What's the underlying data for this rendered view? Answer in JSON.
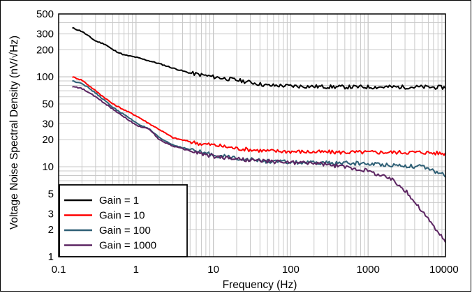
{
  "chart_data": {
    "type": "line",
    "title": "",
    "xlabel": "Frequency (Hz)",
    "ylabel": "Voltage Noise Spectral Density (nV/√Hz)",
    "x_scale": "log",
    "y_scale": "log",
    "xlim": [
      0.1,
      10000
    ],
    "ylim": [
      1,
      500
    ],
    "grid": true,
    "legend_position": "bottom-left",
    "x_ticks": [
      {
        "value": 0.1,
        "label": "0.1"
      },
      {
        "value": 1,
        "label": "1"
      },
      {
        "value": 10,
        "label": "10"
      },
      {
        "value": 100,
        "label": "100"
      },
      {
        "value": 1000,
        "label": "1000"
      },
      {
        "value": 10000,
        "label": "10000"
      }
    ],
    "y_ticks": [
      {
        "value": 1,
        "label": "1"
      },
      {
        "value": 2,
        "label": "2"
      },
      {
        "value": 3,
        "label": "3"
      },
      {
        "value": 5,
        "label": "5"
      },
      {
        "value": 10,
        "label": "10"
      },
      {
        "value": 20,
        "label": "20"
      },
      {
        "value": 30,
        "label": "30"
      },
      {
        "value": 50,
        "label": "50"
      },
      {
        "value": 100,
        "label": "100"
      },
      {
        "value": 200,
        "label": "200"
      },
      {
        "value": 300,
        "label": "300"
      },
      {
        "value": 500,
        "label": "500"
      }
    ],
    "series": [
      {
        "name": "Gain = 1",
        "color": "#000000",
        "points": [
          [
            0.15,
            350
          ],
          [
            0.2,
            320
          ],
          [
            0.3,
            250
          ],
          [
            0.4,
            230
          ],
          [
            0.5,
            200
          ],
          [
            0.7,
            175
          ],
          [
            1,
            165
          ],
          [
            1.5,
            150
          ],
          [
            2,
            140
          ],
          [
            3,
            125
          ],
          [
            5,
            110
          ],
          [
            7,
            105
          ],
          [
            10,
            100
          ],
          [
            20,
            92
          ],
          [
            30,
            87
          ],
          [
            50,
            80
          ],
          [
            70,
            80
          ],
          [
            100,
            79
          ],
          [
            200,
            78
          ],
          [
            500,
            77
          ],
          [
            1000,
            77
          ],
          [
            2000,
            77
          ],
          [
            5000,
            77
          ],
          [
            10000,
            76
          ]
        ]
      },
      {
        "name": "Gain = 10",
        "color": "#ff0000",
        "points": [
          [
            0.15,
            100
          ],
          [
            0.2,
            92
          ],
          [
            0.3,
            70
          ],
          [
            0.5,
            50
          ],
          [
            0.7,
            43
          ],
          [
            1,
            37
          ],
          [
            1.5,
            30
          ],
          [
            2,
            26
          ],
          [
            3,
            21
          ],
          [
            5,
            19
          ],
          [
            7,
            18
          ],
          [
            10,
            17.5
          ],
          [
            20,
            16
          ],
          [
            30,
            15.5
          ],
          [
            50,
            15
          ],
          [
            100,
            14.8
          ],
          [
            200,
            14.6
          ],
          [
            500,
            14.5
          ],
          [
            1000,
            14.5
          ],
          [
            2000,
            14.5
          ],
          [
            5000,
            14.5
          ],
          [
            10000,
            14
          ]
        ]
      },
      {
        "name": "Gain = 100",
        "color": "#2e5f75",
        "points": [
          [
            0.15,
            90
          ],
          [
            0.2,
            85
          ],
          [
            0.3,
            66
          ],
          [
            0.5,
            46
          ],
          [
            0.7,
            38
          ],
          [
            1,
            31
          ],
          [
            1.2,
            28.5
          ],
          [
            1.5,
            26
          ],
          [
            2,
            21
          ],
          [
            3,
            17.5
          ],
          [
            5,
            15.5
          ],
          [
            7,
            14.5
          ],
          [
            10,
            13.5
          ],
          [
            20,
            12.5
          ],
          [
            30,
            12
          ],
          [
            50,
            11.5
          ],
          [
            100,
            11.2
          ],
          [
            200,
            11
          ],
          [
            500,
            11
          ],
          [
            1000,
            10.8
          ],
          [
            2000,
            10.5
          ],
          [
            5000,
            10
          ],
          [
            10000,
            8
          ]
        ]
      },
      {
        "name": "Gain = 1000",
        "color": "#5c2562",
        "points": [
          [
            0.15,
            78
          ],
          [
            0.2,
            74
          ],
          [
            0.3,
            60
          ],
          [
            0.5,
            44
          ],
          [
            0.7,
            36
          ],
          [
            1,
            29
          ],
          [
            1.5,
            26
          ],
          [
            2,
            20
          ],
          [
            3,
            17
          ],
          [
            5,
            15
          ],
          [
            7,
            14
          ],
          [
            10,
            13
          ],
          [
            20,
            12.3
          ],
          [
            30,
            11.8
          ],
          [
            50,
            11.5
          ],
          [
            100,
            11.2
          ],
          [
            200,
            11
          ],
          [
            300,
            10.5
          ],
          [
            500,
            10
          ],
          [
            700,
            9.5
          ],
          [
            1000,
            9
          ],
          [
            2000,
            7.3
          ],
          [
            3000,
            5.5
          ],
          [
            5000,
            3.2
          ],
          [
            7000,
            2.2
          ],
          [
            10000,
            1.45
          ]
        ]
      }
    ]
  }
}
